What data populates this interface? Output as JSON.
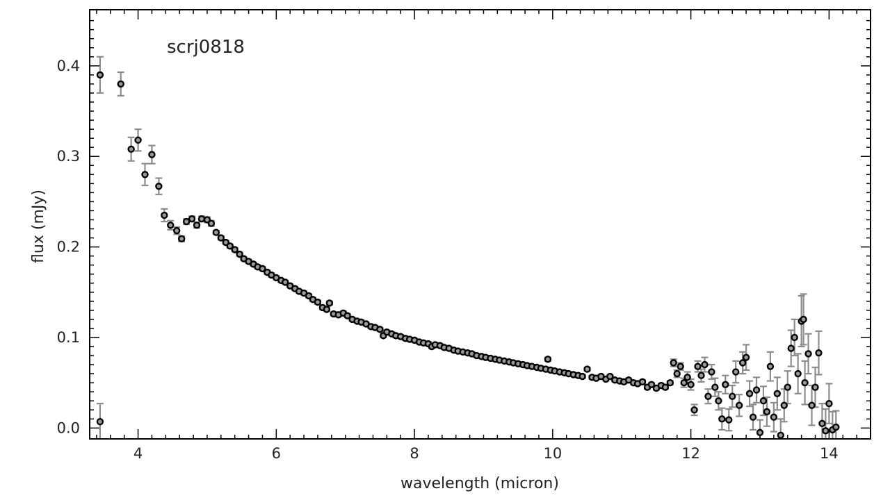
{
  "chart_data": {
    "type": "scatter",
    "title": "scrj0818",
    "xlabel": "wavelength (micron)",
    "ylabel": "flux (mJy)",
    "xlim": [
      3.3,
      14.6
    ],
    "ylim": [
      -0.012,
      0.462
    ],
    "x_ticks": [
      "4",
      "6",
      "8",
      "10",
      "12",
      "14"
    ],
    "y_ticks": [
      "0.0",
      "0.1",
      "0.2",
      "0.3",
      "0.4"
    ],
    "grid": false,
    "legend": "none",
    "colors": {
      "marker": "#000000",
      "errorbar": "#8c8c8c",
      "axis": "#000000"
    },
    "points": [
      [
        3.45,
        0.39,
        0.02
      ],
      [
        3.45,
        0.007,
        0.02
      ],
      [
        3.75,
        0.38,
        0.013
      ],
      [
        3.9,
        0.308,
        0.013
      ],
      [
        4.0,
        0.318,
        0.012
      ],
      [
        4.1,
        0.28,
        0.012
      ],
      [
        4.2,
        0.302,
        0.01
      ],
      [
        4.3,
        0.267,
        0.009
      ],
      [
        4.38,
        0.235,
        0.007
      ],
      [
        4.47,
        0.224,
        0.005
      ],
      [
        4.56,
        0.218,
        0.004
      ],
      [
        4.63,
        0.209,
        0.003
      ],
      [
        4.7,
        0.228,
        0.003
      ],
      [
        4.78,
        0.231,
        0.003
      ],
      [
        4.85,
        0.224,
        0.003
      ],
      [
        4.92,
        0.231,
        0.003
      ],
      [
        5.0,
        0.23,
        0.003
      ],
      [
        5.06,
        0.226,
        0.003
      ],
      [
        5.13,
        0.216,
        0.002
      ],
      [
        5.2,
        0.21,
        0.002
      ],
      [
        5.27,
        0.205,
        0.002
      ],
      [
        5.33,
        0.201,
        0.002
      ],
      [
        5.4,
        0.197,
        0.002
      ],
      [
        5.47,
        0.192,
        0.002
      ],
      [
        5.53,
        0.187,
        0.002
      ],
      [
        5.6,
        0.184,
        0.002
      ],
      [
        5.67,
        0.181,
        0.002
      ],
      [
        5.73,
        0.178,
        0.002
      ],
      [
        5.8,
        0.176,
        0.002
      ],
      [
        5.87,
        0.172,
        0.002
      ],
      [
        5.93,
        0.169,
        0.002
      ],
      [
        6.0,
        0.166,
        0.002
      ],
      [
        6.07,
        0.163,
        0.002
      ],
      [
        6.13,
        0.161,
        0.002
      ],
      [
        6.2,
        0.157,
        0.002
      ],
      [
        6.27,
        0.154,
        0.002
      ],
      [
        6.33,
        0.151,
        0.002
      ],
      [
        6.4,
        0.149,
        0.002
      ],
      [
        6.47,
        0.146,
        0.002
      ],
      [
        6.53,
        0.142,
        0.002
      ],
      [
        6.6,
        0.139,
        0.002
      ],
      [
        6.67,
        0.133,
        0.002
      ],
      [
        6.73,
        0.131,
        0.002
      ],
      [
        6.77,
        0.138,
        0.002
      ],
      [
        6.83,
        0.126,
        0.002
      ],
      [
        6.9,
        0.125,
        0.002
      ],
      [
        6.97,
        0.127,
        0.002
      ],
      [
        7.03,
        0.124,
        0.002
      ],
      [
        7.1,
        0.12,
        0.002
      ],
      [
        7.17,
        0.118,
        0.002
      ],
      [
        7.23,
        0.117,
        0.002
      ],
      [
        7.3,
        0.115,
        0.002
      ],
      [
        7.37,
        0.112,
        0.002
      ],
      [
        7.43,
        0.111,
        0.002
      ],
      [
        7.5,
        0.109,
        0.002
      ],
      [
        7.55,
        0.102,
        0.002
      ],
      [
        7.6,
        0.106,
        0.002
      ],
      [
        7.67,
        0.104,
        0.002
      ],
      [
        7.73,
        0.102,
        0.002
      ],
      [
        7.8,
        0.101,
        0.002
      ],
      [
        7.87,
        0.099,
        0.002
      ],
      [
        7.93,
        0.098,
        0.002
      ],
      [
        8.0,
        0.097,
        0.002
      ],
      [
        8.07,
        0.095,
        0.002
      ],
      [
        8.13,
        0.094,
        0.002
      ],
      [
        8.2,
        0.093,
        0.002
      ],
      [
        8.25,
        0.09,
        0.002
      ],
      [
        8.3,
        0.092,
        0.002
      ],
      [
        8.37,
        0.091,
        0.002
      ],
      [
        8.43,
        0.089,
        0.002
      ],
      [
        8.5,
        0.088,
        0.002
      ],
      [
        8.57,
        0.086,
        0.002
      ],
      [
        8.63,
        0.085,
        0.002
      ],
      [
        8.7,
        0.084,
        0.002
      ],
      [
        8.77,
        0.083,
        0.002
      ],
      [
        8.83,
        0.082,
        0.002
      ],
      [
        8.9,
        0.08,
        0.002
      ],
      [
        8.97,
        0.079,
        0.002
      ],
      [
        9.03,
        0.078,
        0.002
      ],
      [
        9.1,
        0.077,
        0.002
      ],
      [
        9.17,
        0.076,
        0.002
      ],
      [
        9.23,
        0.075,
        0.002
      ],
      [
        9.3,
        0.074,
        0.002
      ],
      [
        9.37,
        0.073,
        0.002
      ],
      [
        9.43,
        0.072,
        0.002
      ],
      [
        9.5,
        0.071,
        0.002
      ],
      [
        9.57,
        0.07,
        0.002
      ],
      [
        9.63,
        0.069,
        0.002
      ],
      [
        9.7,
        0.068,
        0.002
      ],
      [
        9.77,
        0.067,
        0.002
      ],
      [
        9.83,
        0.066,
        0.002
      ],
      [
        9.9,
        0.065,
        0.002
      ],
      [
        9.93,
        0.076,
        0.002
      ],
      [
        9.97,
        0.064,
        0.002
      ],
      [
        10.03,
        0.063,
        0.002
      ],
      [
        10.1,
        0.062,
        0.002
      ],
      [
        10.17,
        0.061,
        0.002
      ],
      [
        10.23,
        0.06,
        0.002
      ],
      [
        10.3,
        0.059,
        0.002
      ],
      [
        10.37,
        0.058,
        0.002
      ],
      [
        10.43,
        0.057,
        0.002
      ],
      [
        10.5,
        0.065,
        0.002
      ],
      [
        10.57,
        0.056,
        0.002
      ],
      [
        10.63,
        0.055,
        0.002
      ],
      [
        10.7,
        0.057,
        0.002
      ],
      [
        10.77,
        0.054,
        0.002
      ],
      [
        10.83,
        0.057,
        0.002
      ],
      [
        10.9,
        0.053,
        0.002
      ],
      [
        10.97,
        0.052,
        0.002
      ],
      [
        11.03,
        0.051,
        0.002
      ],
      [
        11.1,
        0.053,
        0.002
      ],
      [
        11.17,
        0.05,
        0.002
      ],
      [
        11.23,
        0.049,
        0.002
      ],
      [
        11.3,
        0.051,
        0.002
      ],
      [
        11.37,
        0.045,
        0.002
      ],
      [
        11.43,
        0.048,
        0.002
      ],
      [
        11.5,
        0.044,
        0.002
      ],
      [
        11.57,
        0.047,
        0.002
      ],
      [
        11.63,
        0.045,
        0.002
      ],
      [
        11.7,
        0.05,
        0.002
      ],
      [
        11.75,
        0.072,
        0.004
      ],
      [
        11.8,
        0.06,
        0.004
      ],
      [
        11.85,
        0.068,
        0.004
      ],
      [
        11.9,
        0.05,
        0.005
      ],
      [
        11.95,
        0.056,
        0.006
      ],
      [
        12.0,
        0.048,
        0.006
      ],
      [
        12.05,
        0.02,
        0.006
      ],
      [
        12.1,
        0.068,
        0.006
      ],
      [
        12.15,
        0.058,
        0.007
      ],
      [
        12.2,
        0.07,
        0.008
      ],
      [
        12.25,
        0.035,
        0.008
      ],
      [
        12.3,
        0.062,
        0.008
      ],
      [
        12.35,
        0.045,
        0.01
      ],
      [
        12.4,
        0.03,
        0.01
      ],
      [
        12.45,
        0.01,
        0.012
      ],
      [
        12.5,
        0.048,
        0.01
      ],
      [
        12.55,
        0.009,
        0.012
      ],
      [
        12.6,
        0.035,
        0.012
      ],
      [
        12.65,
        0.062,
        0.012
      ],
      [
        12.7,
        0.025,
        0.012
      ],
      [
        12.75,
        0.072,
        0.012
      ],
      [
        12.8,
        0.078,
        0.014
      ],
      [
        12.85,
        0.038,
        0.014
      ],
      [
        12.9,
        0.012,
        0.014
      ],
      [
        12.95,
        0.042,
        0.014
      ],
      [
        13.0,
        -0.005,
        0.014
      ],
      [
        13.05,
        0.03,
        0.016
      ],
      [
        13.1,
        0.018,
        0.016
      ],
      [
        13.15,
        0.068,
        0.016
      ],
      [
        13.2,
        0.012,
        0.016
      ],
      [
        13.25,
        0.038,
        0.018
      ],
      [
        13.3,
        -0.008,
        0.018
      ],
      [
        13.35,
        0.025,
        0.018
      ],
      [
        13.4,
        0.045,
        0.018
      ],
      [
        13.45,
        0.088,
        0.02
      ],
      [
        13.5,
        0.1,
        0.02
      ],
      [
        13.55,
        0.06,
        0.022
      ],
      [
        13.6,
        0.118,
        0.028
      ],
      [
        13.63,
        0.12,
        0.028
      ],
      [
        13.65,
        0.05,
        0.024
      ],
      [
        13.7,
        0.082,
        0.022
      ],
      [
        13.75,
        0.025,
        0.022
      ],
      [
        13.8,
        0.045,
        0.022
      ],
      [
        13.85,
        0.083,
        0.024
      ],
      [
        13.9,
        0.005,
        0.022
      ],
      [
        13.95,
        -0.003,
        0.024
      ],
      [
        14.0,
        0.027,
        0.022
      ],
      [
        14.05,
        -0.002,
        0.02
      ],
      [
        14.1,
        0.001,
        0.018
      ]
    ]
  }
}
